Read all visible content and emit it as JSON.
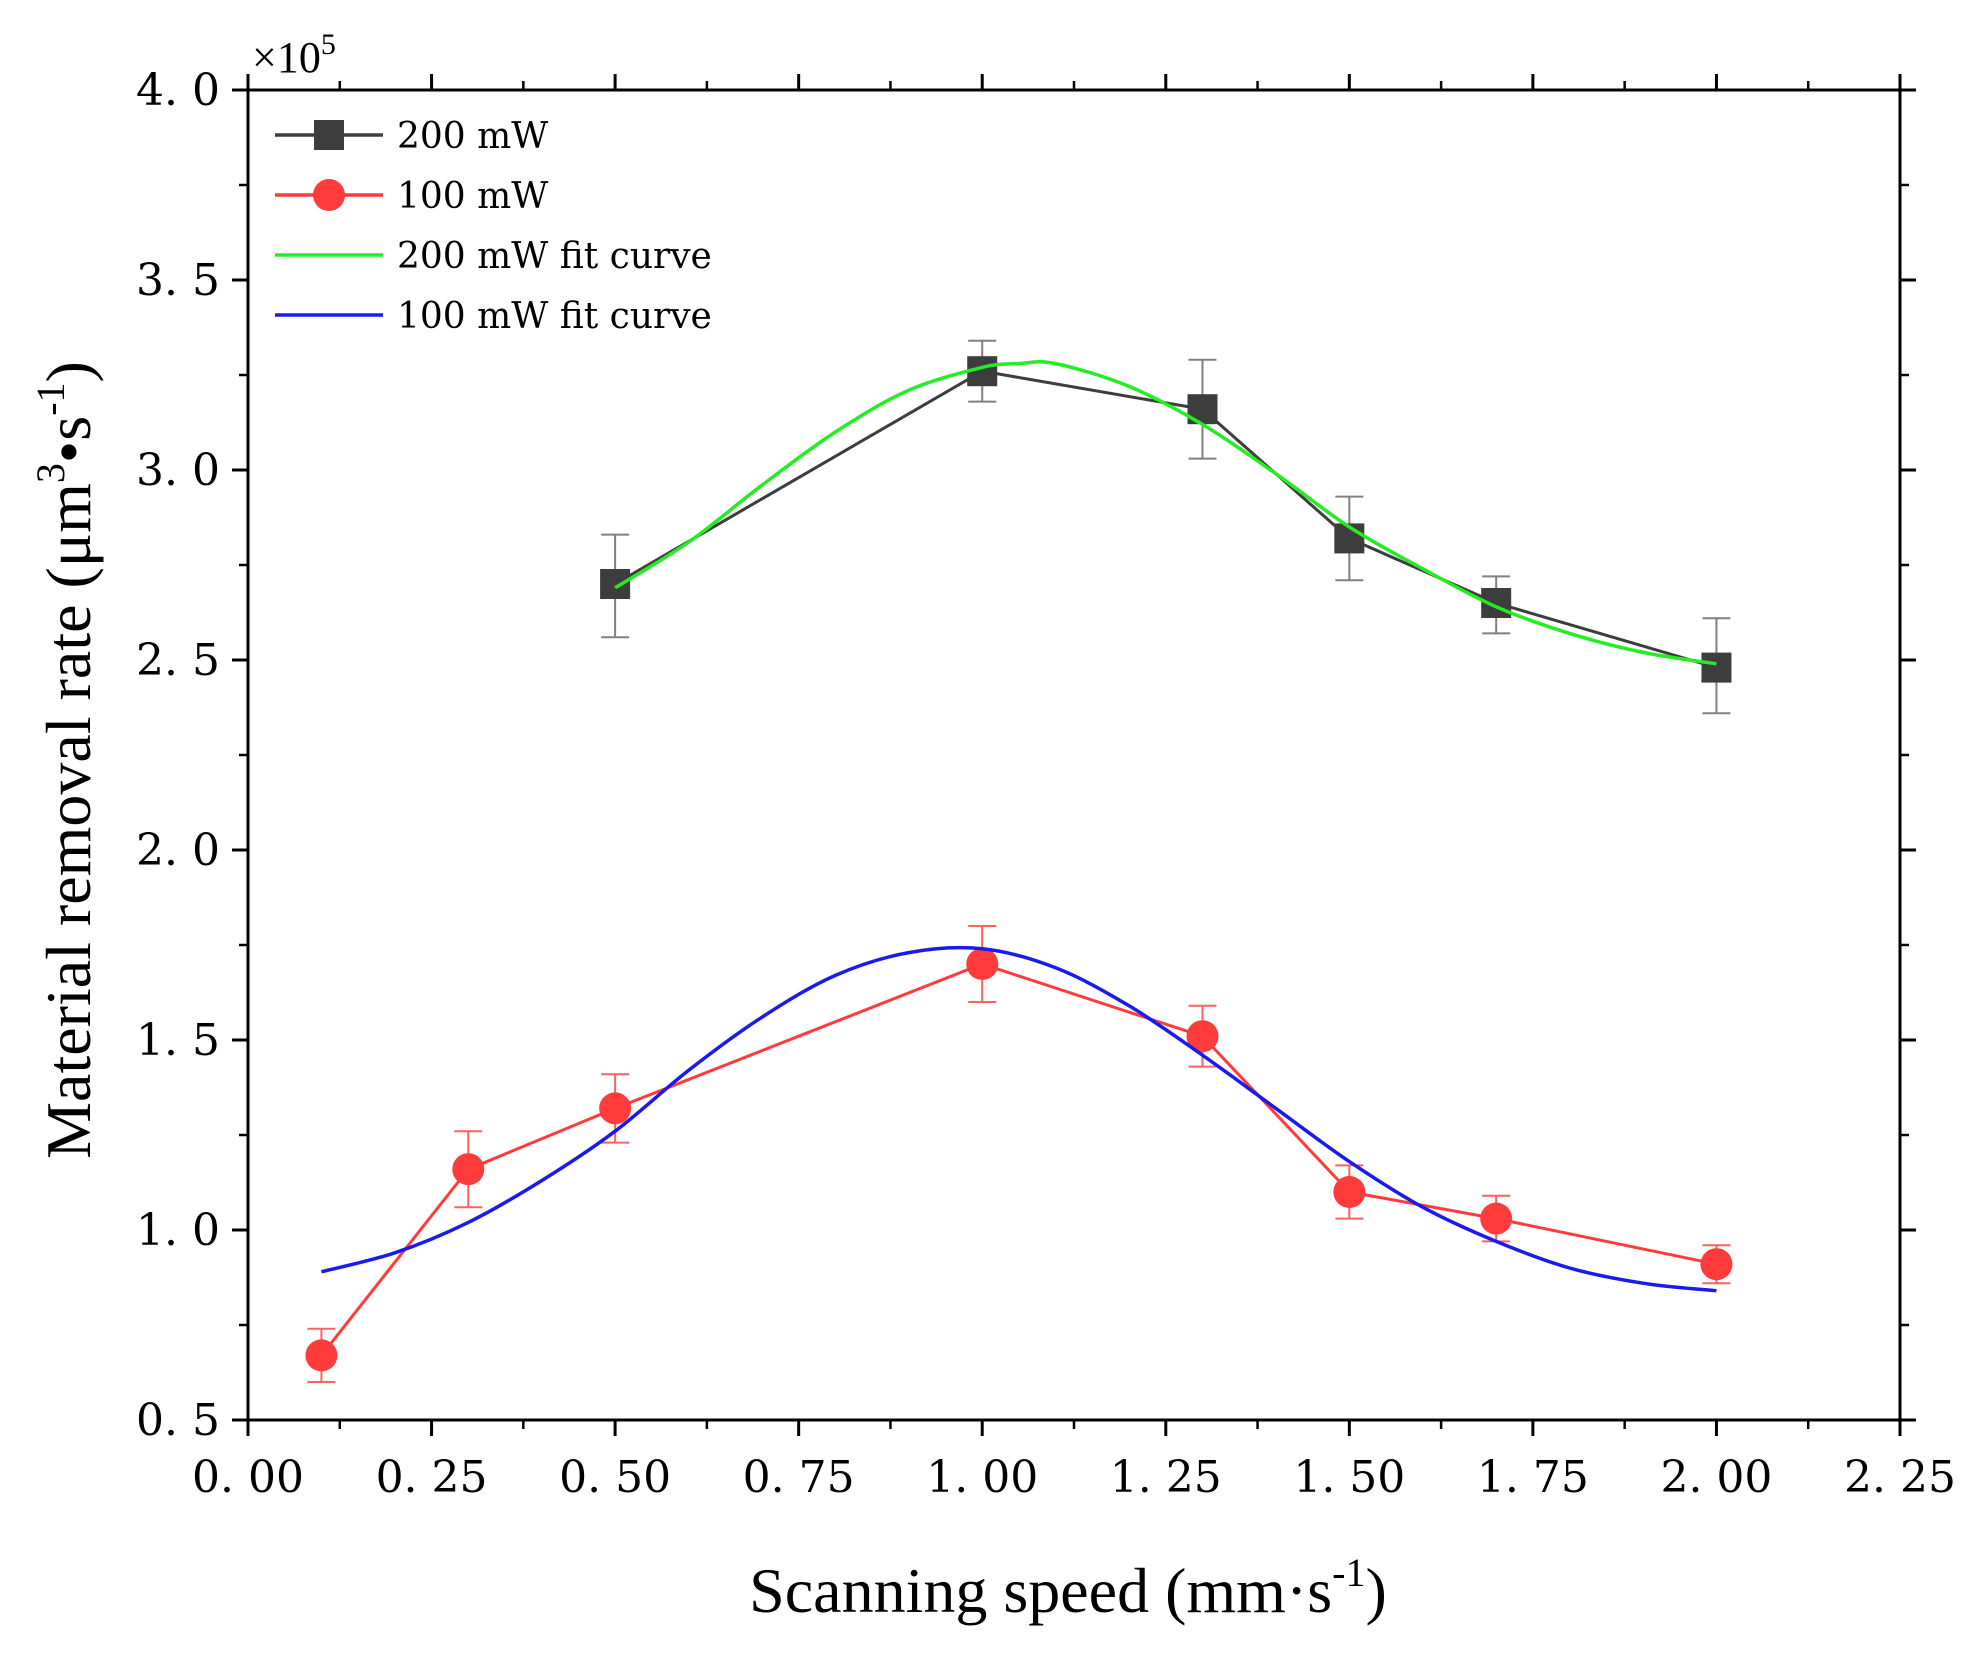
{
  "chart_data": {
    "type": "line",
    "title": "",
    "xlabel": "Scanning speed (mm·s⁻¹)",
    "ylabel": "Material removal rate (μm³•s⁻¹)",
    "xlabel_parts": {
      "main": "Scanning speed (mm·s",
      "sup": "-1",
      "end": ")"
    },
    "ylabel_parts": {
      "main": "Material removal rate (μm",
      "sup1": "3",
      "mid": "•s",
      "sup2": "-1",
      "end": ")"
    },
    "y_multiplier": "×10⁵",
    "y_multiplier_parts": {
      "main": "×10",
      "sup": "5"
    },
    "xlim": [
      0.0,
      2.25
    ],
    "ylim": [
      0.5,
      4.0
    ],
    "x_ticks": [
      "0. 00",
      "0. 25",
      "0. 50",
      "0. 75",
      "1. 00",
      "1. 25",
      "1. 50",
      "1. 75",
      "2. 00",
      "2. 25"
    ],
    "x_tick_values": [
      0.0,
      0.25,
      0.5,
      0.75,
      1.0,
      1.25,
      1.5,
      1.75,
      2.0,
      2.25
    ],
    "y_ticks": [
      "0. 5",
      "1. 0",
      "1. 5",
      "2. 0",
      "2. 5",
      "3. 0",
      "3. 5",
      "4. 0"
    ],
    "y_tick_values": [
      0.5,
      1.0,
      1.5,
      2.0,
      2.5,
      3.0,
      3.5,
      4.0
    ],
    "legend_position": "top-left",
    "grid": false,
    "series": [
      {
        "name": "200 mW",
        "kind": "data",
        "marker": "square",
        "color": "#3d3d3d",
        "errbar_color": "#808080",
        "x": [
          0.5,
          1.0,
          1.3,
          1.5,
          1.7,
          2.0
        ],
        "y": [
          2.7,
          3.26,
          3.16,
          2.82,
          2.65,
          2.48
        ],
        "err_upper": [
          2.83,
          3.34,
          3.29,
          2.93,
          2.72,
          2.61
        ],
        "err_lower": [
          2.56,
          3.18,
          3.03,
          2.71,
          2.57,
          2.36
        ]
      },
      {
        "name": "100 mW",
        "kind": "data",
        "marker": "circle",
        "color": "#ff3b3b",
        "errbar_color": "#ff6060",
        "x": [
          0.1,
          0.3,
          0.5,
          1.0,
          1.3,
          1.5,
          1.7,
          2.0
        ],
        "y": [
          0.67,
          1.16,
          1.32,
          1.7,
          1.51,
          1.1,
          1.03,
          0.91
        ],
        "err_upper": [
          0.74,
          1.26,
          1.41,
          1.8,
          1.59,
          1.17,
          1.09,
          0.96
        ],
        "err_lower": [
          0.6,
          1.06,
          1.23,
          1.6,
          1.43,
          1.03,
          0.97,
          0.86
        ]
      },
      {
        "name": "200 mW fit curve",
        "kind": "fit",
        "color": "#22ee22",
        "x": [
          0.5,
          0.6,
          0.7,
          0.8,
          0.9,
          1.0,
          1.05,
          1.1,
          1.2,
          1.3,
          1.4,
          1.5,
          1.6,
          1.7,
          1.8,
          1.9,
          2.0
        ],
        "y": [
          2.69,
          2.81,
          2.96,
          3.1,
          3.21,
          3.27,
          3.28,
          3.28,
          3.22,
          3.12,
          2.99,
          2.85,
          2.74,
          2.64,
          2.57,
          2.52,
          2.49
        ]
      },
      {
        "name": "100 mW fit curve",
        "kind": "fit",
        "color": "#1a1aee",
        "x": [
          0.1,
          0.2,
          0.3,
          0.4,
          0.5,
          0.6,
          0.7,
          0.8,
          0.9,
          1.0,
          1.1,
          1.2,
          1.3,
          1.4,
          1.5,
          1.6,
          1.7,
          1.8,
          1.9,
          2.0
        ],
        "y": [
          0.89,
          0.94,
          1.02,
          1.13,
          1.26,
          1.42,
          1.56,
          1.67,
          1.73,
          1.74,
          1.69,
          1.59,
          1.46,
          1.32,
          1.18,
          1.06,
          0.97,
          0.9,
          0.86,
          0.84
        ]
      }
    ]
  }
}
